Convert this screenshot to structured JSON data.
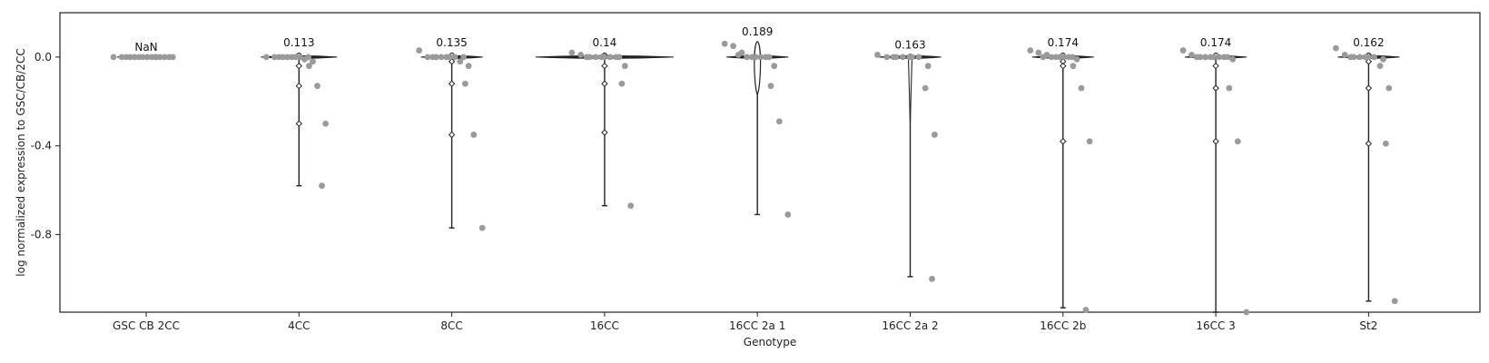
{
  "chart_data": {
    "type": "violin",
    "xlabel": "Genotype",
    "ylabel": "log normalized expression to GSC/CB/2CC",
    "ylim": [
      -1.15,
      0.2
    ],
    "y_ticks": [
      0.0,
      -0.4,
      -0.8
    ],
    "y_tick_labels": [
      "0.0",
      "-0.4",
      "-0.8"
    ],
    "categories": [
      "GSC CB 2CC",
      "4CC",
      "8CC",
      "16CC",
      "16CC 2a 1",
      "16CC 2a 2",
      "16CC 2b",
      "16CC 3",
      "St2"
    ],
    "data_labels": [
      "NaN",
      "0.113",
      "0.135",
      "0.14",
      "0.189",
      "0.163",
      "0.174",
      "0.174",
      "0.162"
    ],
    "colors": {
      "points": "#9a9a9a",
      "violin": "#222222",
      "frame": "#222222"
    },
    "groups": [
      {
        "points": [
          0,
          0,
          0,
          0,
          0,
          0,
          0,
          0,
          0,
          0,
          0,
          0,
          0,
          0,
          0
        ],
        "min": 0,
        "max": 0
      },
      {
        "points": [
          0,
          0,
          0,
          0,
          0,
          0,
          0,
          0,
          0,
          -0.01,
          -0.02,
          -0.04,
          -0.13,
          -0.3,
          -0.58
        ],
        "min": -0.58,
        "max": 0.02
      },
      {
        "points": [
          0.03,
          0,
          0,
          0,
          0,
          0,
          0,
          0,
          0,
          -0.02,
          -0.04,
          -0.12,
          -0.35,
          -0.77
        ],
        "min": -0.77,
        "max": 0.02
      },
      {
        "points": [
          0.02,
          0.01,
          0,
          0,
          0,
          0,
          0,
          0,
          0,
          0,
          -0.04,
          -0.12,
          -0.67
        ],
        "min": -0.67,
        "max": 0.02
      },
      {
        "points": [
          0.06,
          0.05,
          0.02,
          0.01,
          0,
          0,
          0,
          0,
          0,
          0,
          -0.04,
          -0.13,
          -0.29,
          -0.71
        ],
        "min": -0.71,
        "max": 0.07
      },
      {
        "points": [
          0.01,
          0,
          0,
          0,
          0,
          0,
          0,
          0,
          -0.04,
          -0.14,
          -0.35,
          -1.0
        ],
        "min": -0.99,
        "max": 0.01
      },
      {
        "points": [
          0.03,
          0.02,
          0.01,
          0,
          0,
          0,
          0,
          0,
          0,
          0,
          -0.01,
          -0.04,
          -0.14,
          -0.38,
          -1.14
        ],
        "min": -1.13,
        "max": 0.02
      },
      {
        "points": [
          0.03,
          0.01,
          0,
          0,
          0,
          0,
          0,
          0,
          0,
          0,
          -0.01,
          -0.14,
          -0.38,
          -1.15
        ],
        "min": -1.15,
        "max": 0.02
      },
      {
        "points": [
          0.04,
          0.01,
          0,
          0,
          0,
          0,
          0,
          0,
          -0.01,
          -0.04,
          -0.14,
          -0.39,
          -1.1
        ],
        "min": -1.1,
        "max": 0.02
      }
    ]
  }
}
